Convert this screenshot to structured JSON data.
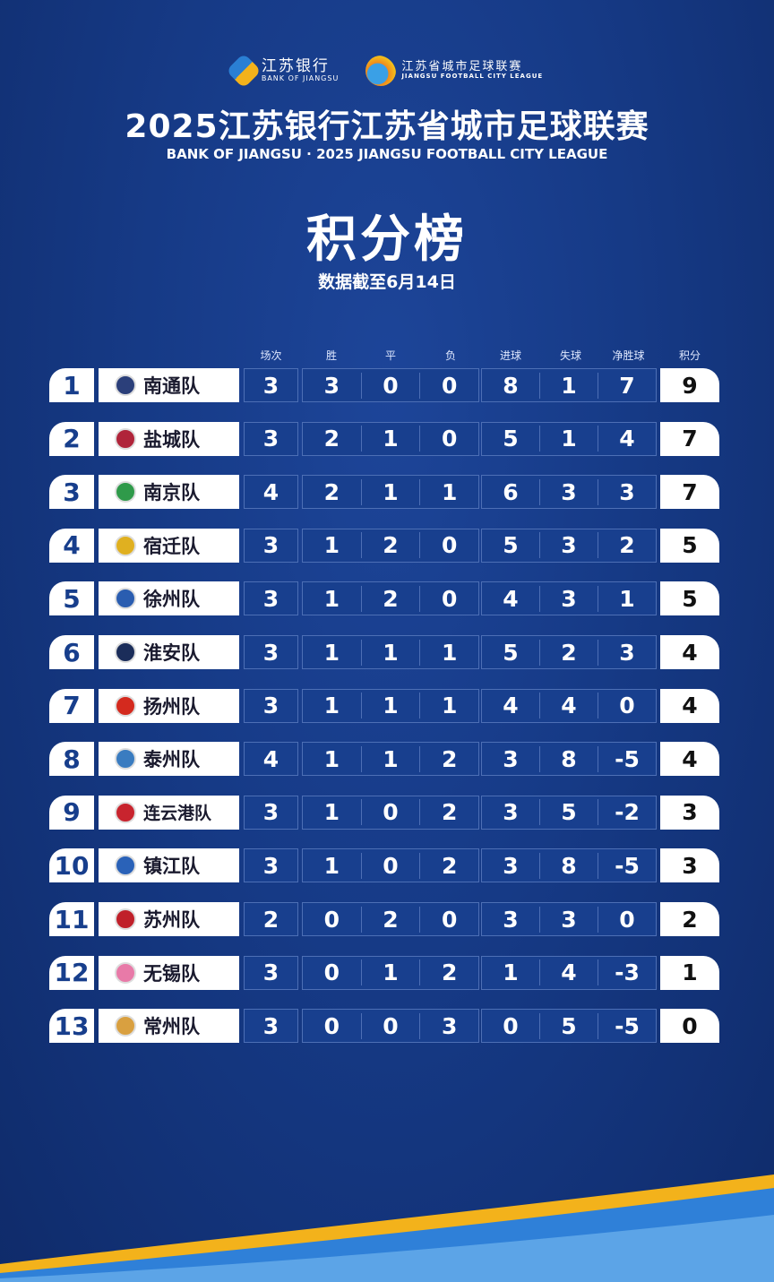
{
  "header": {
    "bank_logo_cn": "江苏银行",
    "bank_logo_en": "BANK OF JIANGSU",
    "league_logo_cn": "江苏省城市足球联赛",
    "league_logo_en": "JIANGSU FOOTBALL CITY LEAGUE",
    "title": "2025江苏银行江苏省城市足球联赛",
    "subtitle": "BANK OF JIANGSU · 2025 JIANGSU FOOTBALL CITY LEAGUE",
    "heading": "积分榜",
    "date": "数据截至6月14日"
  },
  "columns": [
    "场次",
    "胜",
    "平",
    "负",
    "进球",
    "失球",
    "净胜球",
    "积分"
  ],
  "rows": [
    {
      "rank": "1",
      "team": "南通队",
      "logo_color": "#2b3f7a",
      "played": "3",
      "w": "3",
      "d": "0",
      "l": "0",
      "gf": "8",
      "ga": "1",
      "gd": "7",
      "pts": "9"
    },
    {
      "rank": "2",
      "team": "盐城队",
      "logo_color": "#b0243a",
      "played": "3",
      "w": "2",
      "d": "1",
      "l": "0",
      "gf": "5",
      "ga": "1",
      "gd": "4",
      "pts": "7"
    },
    {
      "rank": "3",
      "team": "南京队",
      "logo_color": "#2f9a4a",
      "played": "4",
      "w": "2",
      "d": "1",
      "l": "1",
      "gf": "6",
      "ga": "3",
      "gd": "3",
      "pts": "7"
    },
    {
      "rank": "4",
      "team": "宿迁队",
      "logo_color": "#e0b020",
      "played": "3",
      "w": "1",
      "d": "2",
      "l": "0",
      "gf": "5",
      "ga": "3",
      "gd": "2",
      "pts": "5"
    },
    {
      "rank": "5",
      "team": "徐州队",
      "logo_color": "#2a5db0",
      "played": "3",
      "w": "1",
      "d": "2",
      "l": "0",
      "gf": "4",
      "ga": "3",
      "gd": "1",
      "pts": "5"
    },
    {
      "rank": "6",
      "team": "淮安队",
      "logo_color": "#1b2d5a",
      "played": "3",
      "w": "1",
      "d": "1",
      "l": "1",
      "gf": "5",
      "ga": "2",
      "gd": "3",
      "pts": "4"
    },
    {
      "rank": "7",
      "team": "扬州队",
      "logo_color": "#d42a1e",
      "played": "3",
      "w": "1",
      "d": "1",
      "l": "1",
      "gf": "4",
      "ga": "4",
      "gd": "0",
      "pts": "4"
    },
    {
      "rank": "8",
      "team": "泰州队",
      "logo_color": "#3a7cc0",
      "played": "4",
      "w": "1",
      "d": "1",
      "l": "2",
      "gf": "3",
      "ga": "8",
      "gd": "-5",
      "pts": "4"
    },
    {
      "rank": "9",
      "team": "连云港队",
      "logo_color": "#c8242e",
      "played": "3",
      "w": "1",
      "d": "0",
      "l": "2",
      "gf": "3",
      "ga": "5",
      "gd": "-2",
      "pts": "3"
    },
    {
      "rank": "10",
      "team": "镇江队",
      "logo_color": "#2a62b8",
      "played": "3",
      "w": "1",
      "d": "0",
      "l": "2",
      "gf": "3",
      "ga": "8",
      "gd": "-5",
      "pts": "3"
    },
    {
      "rank": "11",
      "team": "苏州队",
      "logo_color": "#c0202a",
      "played": "2",
      "w": "0",
      "d": "2",
      "l": "0",
      "gf": "3",
      "ga": "3",
      "gd": "0",
      "pts": "2"
    },
    {
      "rank": "12",
      "team": "无锡队",
      "logo_color": "#e87aa8",
      "played": "3",
      "w": "0",
      "d": "1",
      "l": "2",
      "gf": "1",
      "ga": "4",
      "gd": "-3",
      "pts": "1"
    },
    {
      "rank": "13",
      "team": "常州队",
      "logo_color": "#d9a040",
      "played": "3",
      "w": "0",
      "d": "0",
      "l": "3",
      "gf": "0",
      "ga": "5",
      "gd": "-5",
      "pts": "0"
    }
  ],
  "colors": {
    "background": "#163a86",
    "accent": "#f3b21b",
    "cell": "#183f8e"
  }
}
